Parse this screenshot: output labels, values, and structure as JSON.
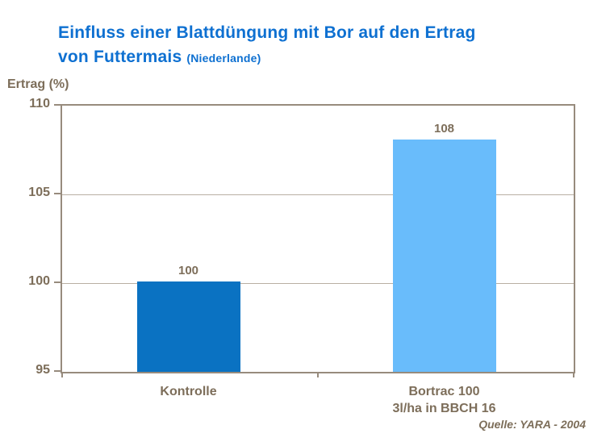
{
  "title": {
    "line1": "Einfluss einer Blattdüngung mit Bor auf den Ertrag",
    "line2": "von Futtermais",
    "note": "(Niederlande)"
  },
  "source": "Quelle: YARA - 2004",
  "colors": {
    "title_blue": "#0e70d1",
    "text_brown": "#7d6e5a",
    "axis_border": "#978b7d",
    "gridline": "#b9afa3",
    "bar_control": "#0a72c2",
    "bar_treatment": "#69bcfb"
  },
  "chart_data": {
    "type": "bar",
    "title": "Einfluss einer Blattdüngung mit Bor auf den Ertrag von Futtermais (Niederlande)",
    "xlabel": "",
    "ylabel": "Ertrag (%)",
    "ylim": [
      95,
      110
    ],
    "yticks": [
      95,
      100,
      105,
      110
    ],
    "grid": true,
    "legend": false,
    "categories": [
      "Kontrolle",
      "Bortrac 100\n3l/ha in BBCH 16"
    ],
    "values": [
      100,
      108
    ],
    "data_labels": [
      "100",
      "108"
    ],
    "bar_colors": [
      "#0a72c2",
      "#69bcfb"
    ]
  }
}
